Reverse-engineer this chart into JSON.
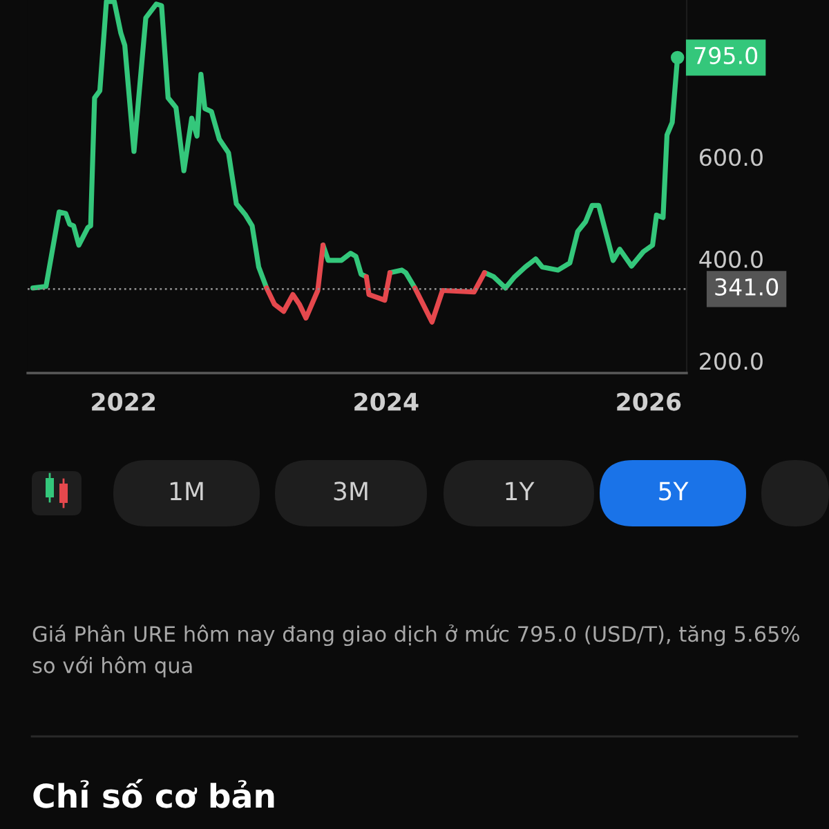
{
  "chart_data": {
    "type": "line",
    "x": [
      2021.31,
      2021.41,
      2021.51,
      2021.56,
      2021.59,
      2021.62,
      2021.66,
      2021.73,
      2021.75,
      2021.78,
      2021.82,
      2021.87,
      2021.93,
      2021.98,
      2022.01,
      2022.08,
      2022.17,
      2022.25,
      2022.29,
      2022.34,
      2022.4,
      2022.46,
      2022.52,
      2022.56,
      2022.59,
      2022.62,
      2022.67,
      2022.73,
      2022.8,
      2022.86,
      2022.93,
      2022.98,
      2023.03,
      2023.09,
      2023.15,
      2023.22,
      2023.29,
      2023.34,
      2023.39,
      2023.48,
      2023.52,
      2023.56,
      2023.66,
      2023.73,
      2023.77,
      2023.81,
      2023.85,
      2023.87,
      2023.99,
      2024.03,
      2024.12,
      2024.15,
      2024.22,
      2024.35,
      2024.43,
      2024.67,
      2024.75,
      2024.82,
      2024.91,
      2024.98,
      2025.06,
      2025.14,
      2025.19,
      2025.31,
      2025.4,
      2025.46,
      2025.52,
      2025.57,
      2025.62,
      2025.73,
      2025.78,
      2025.87,
      2025.96,
      2026.03,
      2026.06,
      2026.11,
      2026.14,
      2026.18,
      2026.22
    ],
    "series": [
      {
        "color": "#34c77b",
        "values": [
          343,
          346,
          492,
          489,
          468,
          465,
          427,
          462,
          465,
          716,
          730,
          905,
          905,
          843,
          819,
          611,
          873,
          900,
          897,
          716,
          697,
          573,
          676,
          641,
          762,
          695,
          689,
          635,
          608,
          508,
          486,
          465,
          384,
          343,
          null,
          null,
          null,
          null,
          null,
          null,
          427,
          397,
          397,
          411,
          405,
          370,
          365,
          null,
          null,
          373,
          378,
          373,
          343,
          null,
          null,
          null,
          373,
          365,
          343,
          365,
          384,
          400,
          384,
          378,
          392,
          454,
          473,
          505,
          505,
          397,
          419,
          386,
          414,
          427,
          486,
          481,
          643,
          668,
          795
        ]
      },
      {
        "color": "#e5484d",
        "values": [
          null,
          null,
          null,
          null,
          null,
          null,
          null,
          null,
          null,
          null,
          null,
          null,
          null,
          null,
          null,
          null,
          null,
          null,
          null,
          null,
          null,
          null,
          null,
          null,
          null,
          null,
          null,
          null,
          null,
          null,
          null,
          null,
          null,
          343,
          311,
          297,
          330,
          311,
          284,
          338,
          427,
          null,
          null,
          null,
          null,
          null,
          365,
          330,
          319,
          373,
          null,
          null,
          343,
          276,
          338,
          335,
          373,
          null,
          null,
          null,
          null,
          null,
          null,
          null,
          null,
          null,
          null,
          null,
          null,
          null,
          null,
          null,
          null,
          null,
          null,
          null,
          null,
          null,
          null
        ]
      }
    ],
    "xlim": [
      2021.27,
      2026.29
    ],
    "xticks": [
      2022,
      2024,
      2026
    ],
    "ylim": [
      176,
      908
    ],
    "yticks": [
      {
        "value": 200,
        "label": "200.0"
      },
      {
        "value": 400,
        "label": "400.0"
      },
      {
        "value": 600,
        "label": "600.0"
      }
    ],
    "ref_lines": [
      {
        "axis": "y",
        "value": 341,
        "label": "341.0",
        "color": "#8a8a8a",
        "line_style": "dotted"
      }
    ],
    "annotations": [
      {
        "text": "795.0",
        "x": 2026.22,
        "y": 795
      },
      "1M",
      "3M",
      "1Y",
      "5Y",
      "Giá Phân URE hôm nay đang giao dịch ở mức 795.0 (USD/T), tăng 5.65% so với hôm qua",
      "Chỉ số cơ bản"
    ],
    "grid": false,
    "legend": false
  }
}
